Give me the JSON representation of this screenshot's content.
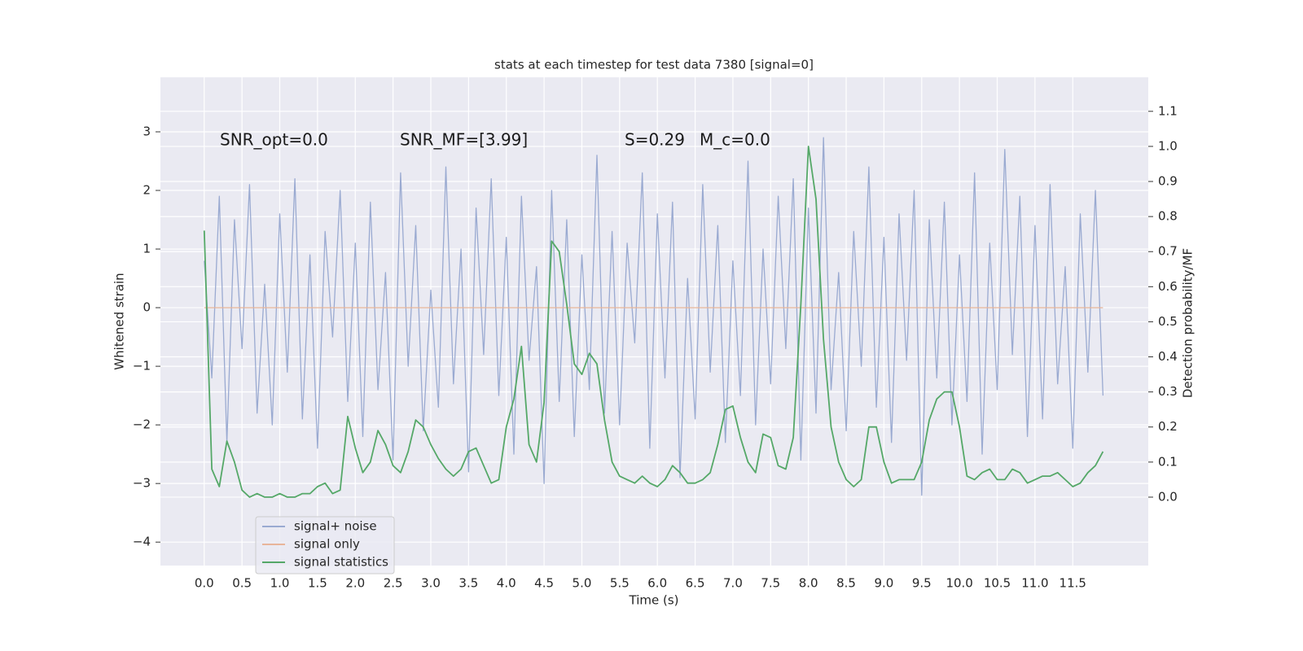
{
  "chart_data": {
    "type": "line",
    "title": "stats at each timestep for test data 7380 [signal=0]",
    "xlabel": "Time (s)",
    "ylabel": "Whitened strain",
    "y2label": "Detection probability/MF",
    "annotations": [
      "SNR_opt=0.0",
      "SNR_MF=[3.99]",
      "S=0.29",
      "M_c=0.0"
    ],
    "grid": true,
    "legend": "lower left",
    "xlim": [
      -0.58,
      12.5
    ],
    "ylim": [
      -4.4,
      3.93
    ],
    "y2lim": [
      -0.195,
      1.197
    ],
    "xticks": [
      {
        "value": 0,
        "label": "0.0"
      },
      0.5,
      {
        "value": 1,
        "label": "1.0"
      },
      1.5,
      {
        "value": 2,
        "label": "2.0"
      },
      2.5,
      {
        "value": 3,
        "label": "3.0"
      },
      3.5,
      {
        "value": 4,
        "label": "4.0"
      },
      4.5,
      {
        "value": 5,
        "label": "5.0"
      },
      5.5,
      {
        "value": 6,
        "label": "6.0"
      },
      6.5,
      {
        "value": 7,
        "label": "7.0"
      },
      7.5,
      {
        "value": 8,
        "label": "8.0"
      },
      8.5,
      {
        "value": 9,
        "label": "9.0"
      },
      9.5,
      {
        "value": 10,
        "label": "10.0"
      },
      10.5,
      {
        "value": 11,
        "label": "11.0"
      },
      11.5
    ],
    "yticks": [
      {
        "value": -4,
        "label": "−4"
      },
      {
        "value": -3,
        "label": "−3"
      },
      {
        "value": -2,
        "label": "−2"
      },
      {
        "value": -1,
        "label": "−1"
      },
      0,
      1,
      2,
      3
    ],
    "y2ticks": [
      {
        "value": 0,
        "label": "0.0"
      },
      0.1,
      0.2,
      0.3,
      0.4,
      0.5,
      0.6,
      0.7,
      0.8,
      0.9,
      {
        "value": 1,
        "label": "1.0"
      },
      1.1
    ],
    "x": [
      0,
      0.1,
      0.2,
      0.3,
      0.4,
      0.5,
      0.6,
      0.7,
      0.8,
      0.9,
      1,
      1.1,
      1.2,
      1.3,
      1.4,
      1.5,
      1.6,
      1.7,
      1.8,
      1.9,
      2,
      2.1,
      2.2,
      2.3,
      2.4,
      2.5,
      2.6,
      2.7,
      2.8,
      2.9,
      3,
      3.1,
      3.2,
      3.3,
      3.4,
      3.5,
      3.6,
      3.7,
      3.8,
      3.9,
      4,
      4.1,
      4.2,
      4.3,
      4.4,
      4.5,
      4.6,
      4.7,
      4.8,
      4.9,
      5,
      5.1,
      5.2,
      5.3,
      5.4,
      5.5,
      5.6,
      5.7,
      5.8,
      5.9,
      6,
      6.1,
      6.2,
      6.3,
      6.4,
      6.5,
      6.6,
      6.7,
      6.8,
      6.9,
      7,
      7.1,
      7.2,
      7.3,
      7.4,
      7.5,
      7.6,
      7.7,
      7.8,
      7.9,
      8,
      8.1,
      8.2,
      8.3,
      8.4,
      8.5,
      8.6,
      8.7,
      8.8,
      8.9,
      9,
      9.1,
      9.2,
      9.3,
      9.4,
      9.5,
      9.6,
      9.7,
      9.8,
      9.9,
      10,
      10.1,
      10.2,
      10.3,
      10.4,
      10.5,
      10.6,
      10.7,
      10.8,
      10.9,
      11,
      11.1,
      11.2,
      11.3,
      11.4,
      11.5,
      11.6,
      11.7,
      11.8,
      11.9
    ],
    "series": [
      {
        "name": "signal+ noise",
        "color": "#9aaad1",
        "values": [
          0.8,
          -1.2,
          1.9,
          -2.3,
          1.5,
          -0.7,
          2.1,
          -1.8,
          0.4,
          -2.0,
          1.6,
          -1.1,
          2.2,
          -1.9,
          0.9,
          -2.4,
          1.3,
          -0.5,
          2.0,
          -1.6,
          1.1,
          -2.2,
          1.8,
          -1.4,
          0.6,
          -2.6,
          2.3,
          -1.0,
          1.4,
          -2.1,
          0.3,
          -1.7,
          2.4,
          -1.3,
          1.0,
          -2.8,
          1.7,
          -0.8,
          2.2,
          -1.5,
          1.2,
          -2.5,
          1.9,
          -0.9,
          0.7,
          -3.0,
          2.0,
          -1.6,
          1.5,
          -2.2,
          0.9,
          -1.4,
          2.6,
          -1.8,
          1.3,
          -2.0,
          1.1,
          -0.6,
          2.3,
          -2.4,
          1.6,
          -1.2,
          1.8,
          -2.9,
          0.5,
          -1.9,
          2.1,
          -1.1,
          1.4,
          -2.3,
          0.8,
          -1.5,
          2.5,
          -2.0,
          1.0,
          -1.3,
          1.9,
          -0.7,
          2.2,
          -2.6,
          1.7,
          -1.8,
          2.9,
          -1.4,
          0.6,
          -2.1,
          1.3,
          -1.0,
          2.4,
          -1.7,
          1.2,
          -2.3,
          1.6,
          -0.9,
          2.0,
          -3.2,
          1.5,
          -1.2,
          1.8,
          -2.0,
          0.9,
          -1.6,
          2.3,
          -2.5,
          1.1,
          -1.4,
          2.7,
          -0.8,
          1.9,
          -2.2,
          1.4,
          -1.9,
          2.1,
          -1.3,
          0.7,
          -2.4,
          1.6,
          -1.1,
          2.0,
          -1.5
        ]
      },
      {
        "name": "signal only",
        "color": "#e8b59a",
        "values": [
          0,
          0,
          0,
          0,
          0,
          0,
          0,
          0,
          0,
          0,
          0,
          0,
          0,
          0,
          0,
          0,
          0,
          0,
          0,
          0,
          0,
          0,
          0,
          0,
          0,
          0,
          0,
          0,
          0,
          0,
          0,
          0,
          0,
          0,
          0,
          0,
          0,
          0,
          0,
          0,
          0,
          0,
          0,
          0,
          0,
          0,
          0,
          0,
          0,
          0,
          0,
          0,
          0,
          0,
          0,
          0,
          0,
          0,
          0,
          0,
          0,
          0,
          0,
          0,
          0,
          0,
          0,
          0,
          0,
          0,
          0,
          0,
          0,
          0,
          0,
          0,
          0,
          0,
          0,
          0,
          0,
          0,
          0,
          0,
          0,
          0,
          0,
          0,
          0,
          0,
          0,
          0,
          0,
          0,
          0,
          0,
          0,
          0,
          0,
          0,
          0,
          0,
          0,
          0,
          0,
          0,
          0,
          0,
          0,
          0,
          0,
          0,
          0,
          0,
          0,
          0,
          0,
          0,
          0,
          0
        ]
      },
      {
        "name": "signal statistics",
        "color": "#55a868",
        "axis": "y2",
        "values": [
          0.76,
          0.08,
          0.03,
          0.16,
          0.1,
          0.02,
          0,
          0.01,
          0,
          0,
          0.01,
          0,
          0,
          0.01,
          0.01,
          0.03,
          0.04,
          0.01,
          0.02,
          0.23,
          0.14,
          0.07,
          0.1,
          0.19,
          0.15,
          0.09,
          0.07,
          0.13,
          0.22,
          0.2,
          0.15,
          0.11,
          0.08,
          0.06,
          0.08,
          0.13,
          0.14,
          0.09,
          0.04,
          0.05,
          0.2,
          0.28,
          0.43,
          0.15,
          0.1,
          0.27,
          0.73,
          0.7,
          0.55,
          0.38,
          0.35,
          0.41,
          0.38,
          0.22,
          0.1,
          0.06,
          0.05,
          0.04,
          0.06,
          0.04,
          0.03,
          0.05,
          0.09,
          0.07,
          0.04,
          0.04,
          0.05,
          0.07,
          0.15,
          0.25,
          0.26,
          0.17,
          0.1,
          0.07,
          0.18,
          0.17,
          0.09,
          0.08,
          0.17,
          0.55,
          1.0,
          0.85,
          0.45,
          0.2,
          0.1,
          0.05,
          0.03,
          0.05,
          0.2,
          0.2,
          0.1,
          0.04,
          0.05,
          0.05,
          0.05,
          0.1,
          0.22,
          0.28,
          0.3,
          0.3,
          0.2,
          0.06,
          0.05,
          0.07,
          0.08,
          0.05,
          0.05,
          0.08,
          0.07,
          0.04,
          0.05,
          0.06,
          0.06,
          0.07,
          0.05,
          0.03,
          0.04,
          0.07,
          0.09,
          0.13
        ]
      }
    ]
  }
}
